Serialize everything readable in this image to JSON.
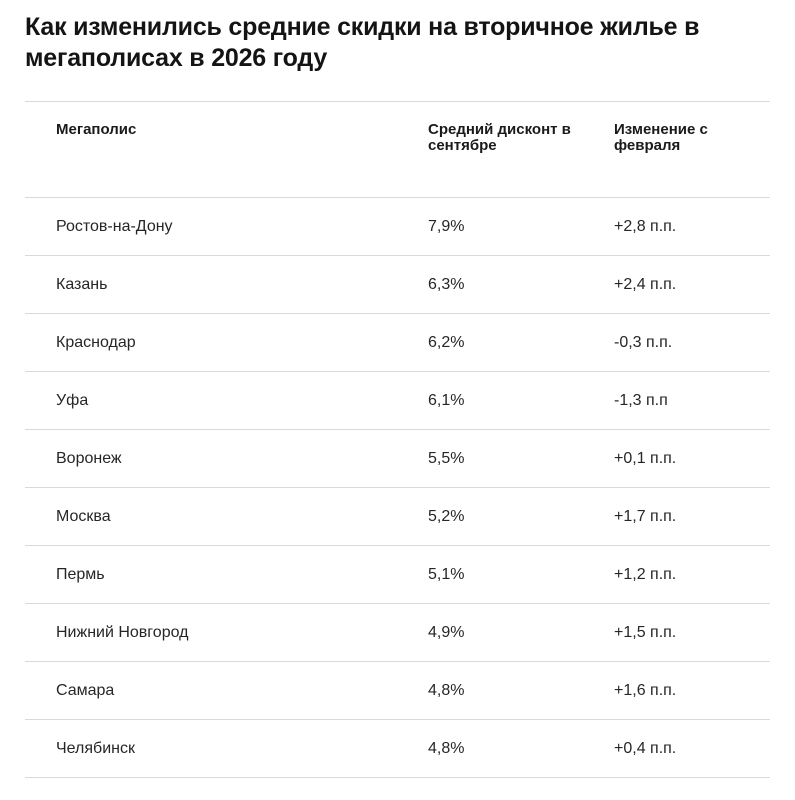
{
  "title": "Как изменились средние скидки на вторичное жилье в мегаполисах в 2026 году",
  "table": {
    "headers": [
      "Мегаполис",
      "Средний дисконт в сентябре",
      "Изменение с февраля"
    ],
    "rows": [
      [
        "Ростов-на-Дону",
        "7,9%",
        "+2,8 п.п."
      ],
      [
        "Казань",
        "6,3%",
        "+2,4 п.п."
      ],
      [
        "Краснодар",
        "6,2%",
        "-0,3 п.п."
      ],
      [
        "Уфа",
        "6,1%",
        "-1,3 п.п"
      ],
      [
        "Воронеж",
        "5,5%",
        "+0,1 п.п."
      ],
      [
        "Москва",
        "5,2%",
        "+1,7 п.п."
      ],
      [
        "Пермь",
        "5,1%",
        "+1,2 п.п."
      ],
      [
        "Нижний Новгород",
        "4,9%",
        "+1,5 п.п."
      ],
      [
        "Самара",
        "4,8%",
        "+1,6 п.п."
      ],
      [
        "Челябинск",
        "4,8%",
        "+0,4 п.п."
      ]
    ]
  }
}
